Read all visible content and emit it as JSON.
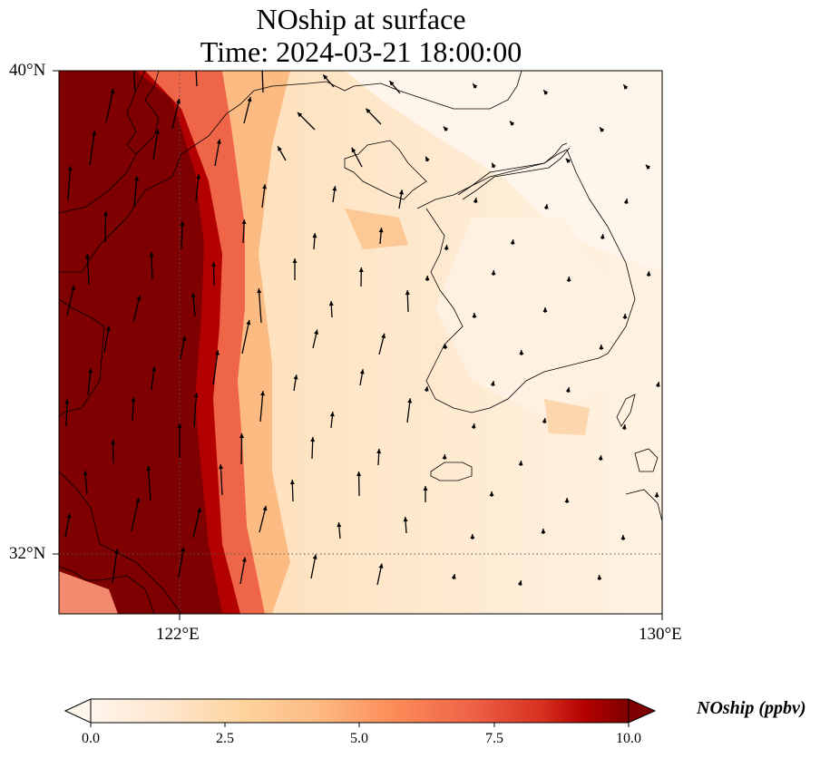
{
  "title_line1": "NOship at surface",
  "title_line2": "Time: 2024-03-21 18:00:00",
  "lat_ticks": [
    "40°N",
    "32°N"
  ],
  "lon_ticks": [
    "122°E",
    "130°E"
  ],
  "colorbar": {
    "label": "NOship (ppbv)",
    "ticks": [
      "0.0",
      "2.5",
      "5.0",
      "7.5",
      "10.0"
    ],
    "colormap": [
      "#fff5eb",
      "#fdd49e",
      "#fdbb84",
      "#fc8d59",
      "#ef6548",
      "#d7301f",
      "#b30000",
      "#7f0000"
    ],
    "extend": "both"
  },
  "map_extent": {
    "lon": [
      120,
      130
    ],
    "lat": [
      31,
      40
    ]
  },
  "gridlines": {
    "lon": [
      122,
      130
    ],
    "lat": [
      32,
      40
    ],
    "style": "dotted"
  },
  "field": {
    "variable": "NOship",
    "units": "ppbv",
    "range": [
      0,
      10
    ]
  },
  "features": [
    "coastline",
    "wind-vectors"
  ]
}
